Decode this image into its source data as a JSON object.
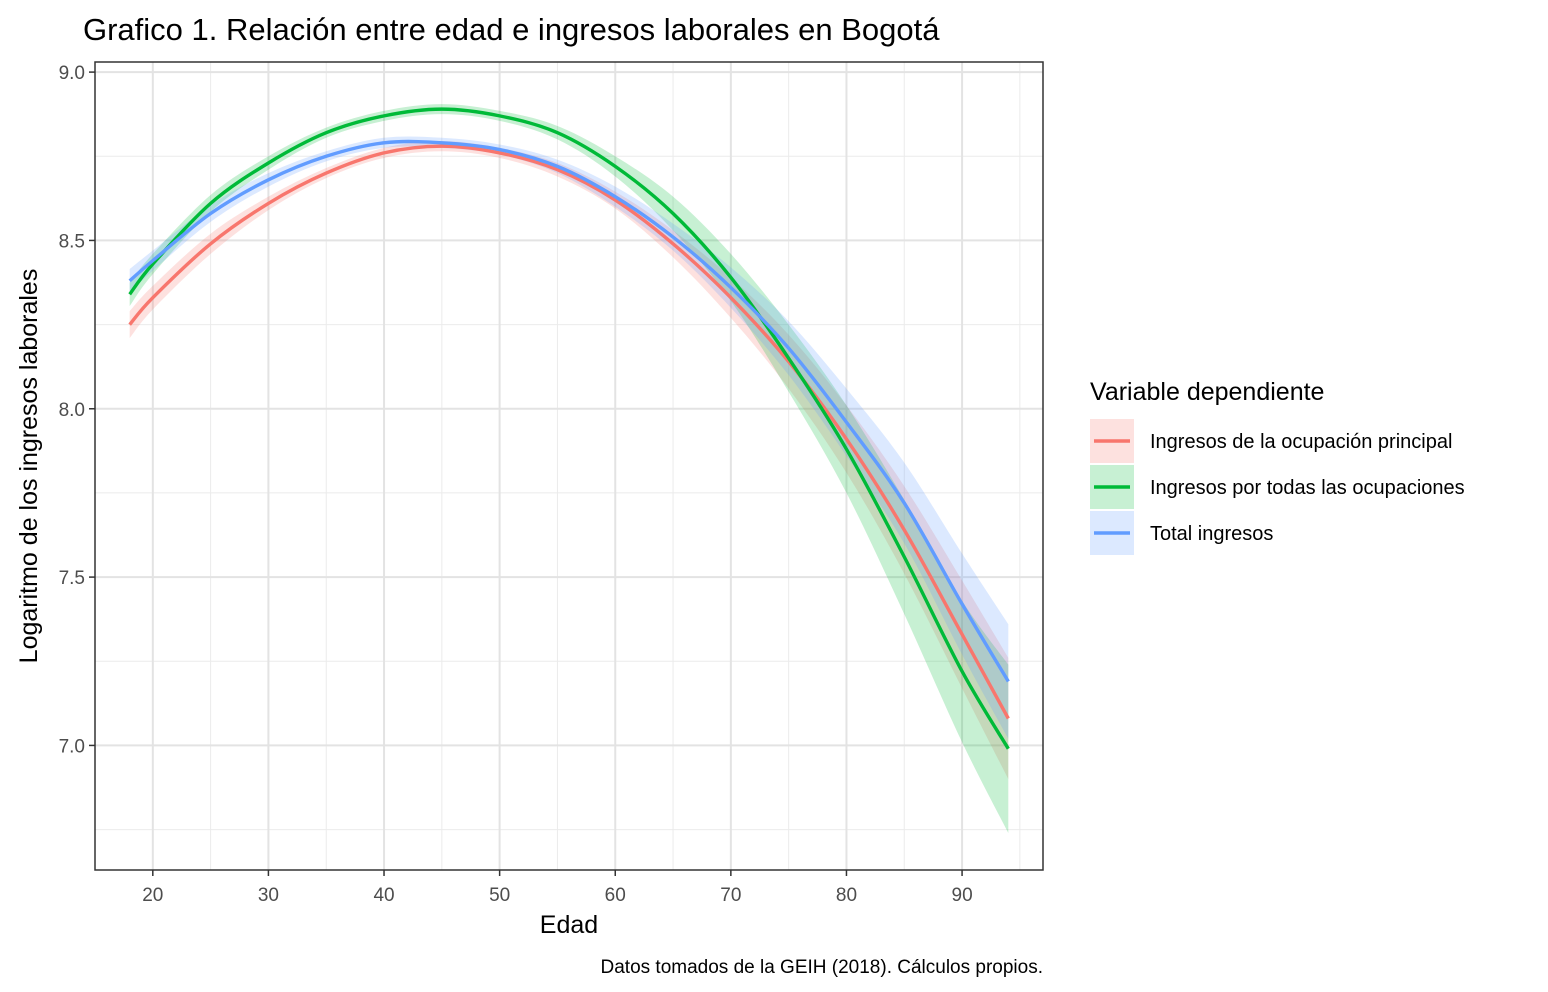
{
  "chart_data": {
    "type": "line",
    "title": "Grafico 1. Relación entre edad e ingresos laborales en Bogotá",
    "xlabel": "Edad",
    "ylabel": "Logaritmo de los ingresos laborales",
    "caption": "Datos tomados de la GEIH (2018). Cálculos propios.",
    "xlim": [
      15,
      97
    ],
    "ylim": [
      6.63,
      9.03
    ],
    "x_ticks": [
      20,
      30,
      40,
      50,
      60,
      70,
      80,
      90
    ],
    "x_tick_labels": [
      "20",
      "30",
      "40",
      "50",
      "60",
      "70",
      "80",
      "90"
    ],
    "y_ticks": [
      7.0,
      7.5,
      8.0,
      8.5,
      9.0
    ],
    "y_tick_labels": [
      "7.0",
      "7.5",
      "8.0",
      "8.5",
      "9.0"
    ],
    "grid": true,
    "legend": {
      "title": "Variable dependiente",
      "placement": "right"
    },
    "x": [
      18,
      20,
      25,
      30,
      35,
      40,
      45,
      50,
      55,
      60,
      65,
      70,
      75,
      80,
      85,
      90,
      94
    ],
    "series": [
      {
        "name": "Ingresos de la ocupación principal",
        "color": "#F8766D",
        "values": [
          8.25,
          8.33,
          8.49,
          8.61,
          8.7,
          8.76,
          8.78,
          8.76,
          8.71,
          8.62,
          8.49,
          8.33,
          8.14,
          7.91,
          7.64,
          7.33,
          7.08
        ],
        "band_halfwidth": [
          0.04,
          0.035,
          0.03,
          0.02,
          0.015,
          0.015,
          0.015,
          0.015,
          0.02,
          0.025,
          0.04,
          0.06,
          0.08,
          0.1,
          0.13,
          0.16,
          0.18
        ]
      },
      {
        "name": "Ingresos por todas las ocupaciones",
        "color": "#00BA38",
        "values": [
          8.34,
          8.43,
          8.61,
          8.73,
          8.82,
          8.87,
          8.89,
          8.87,
          8.82,
          8.72,
          8.58,
          8.39,
          8.15,
          7.88,
          7.56,
          7.22,
          6.99
        ],
        "band_halfwidth": [
          0.035,
          0.03,
          0.025,
          0.02,
          0.015,
          0.015,
          0.015,
          0.015,
          0.02,
          0.03,
          0.05,
          0.07,
          0.1,
          0.13,
          0.17,
          0.21,
          0.25
        ]
      },
      {
        "name": "Total ingresos",
        "color": "#619CFF",
        "values": [
          8.38,
          8.44,
          8.58,
          8.68,
          8.75,
          8.79,
          8.79,
          8.77,
          8.72,
          8.63,
          8.51,
          8.36,
          8.18,
          7.96,
          7.72,
          7.42,
          7.19
        ],
        "band_halfwidth": [
          0.035,
          0.03,
          0.025,
          0.02,
          0.015,
          0.015,
          0.015,
          0.015,
          0.02,
          0.03,
          0.04,
          0.06,
          0.08,
          0.1,
          0.12,
          0.15,
          0.17
        ]
      }
    ]
  }
}
